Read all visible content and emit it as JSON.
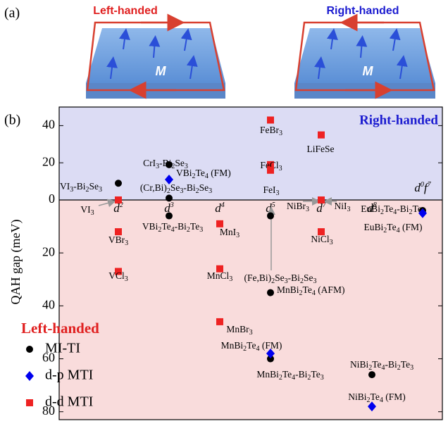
{
  "panel_a": {
    "label": "(a)",
    "left_title": "Left-handed",
    "right_title": "Right-handed",
    "slab_label": "M"
  },
  "chart_data": {
    "type": "scatter",
    "panel_label": "(b)",
    "ylabel": "QAH gap (meV)",
    "upper_label": "Right-handed",
    "lower_label": "Left-handed",
    "categories": [
      "d2",
      "d3",
      "d4",
      "d5",
      "d7",
      "d8",
      "d0f7"
    ],
    "ylim": [
      -83,
      50
    ],
    "yticks": [
      40,
      20,
      0,
      {
        "value": -20,
        "label": "20"
      },
      {
        "value": -40,
        "label": "40"
      },
      {
        "value": -60,
        "label": "60"
      },
      {
        "value": -80,
        "label": "80"
      }
    ],
    "upper_color": "#dcdcf4",
    "lower_color": "#f9dcdc",
    "series": [
      {
        "name": "MI-TI",
        "color": "#000000",
        "marker": "circle",
        "x": [
          "d2",
          "d3",
          "d3",
          "d3",
          "d5",
          "d5",
          "d5",
          "d8",
          "d0f7"
        ],
        "values": [
          9,
          19,
          1,
          -6,
          -6,
          -35,
          -60,
          -66,
          -4
        ],
        "labels": [
          "VI3-Bi2Se3",
          "CrI3-Bi2Se3",
          "(Cr,Bi)2Se3-Bi2Se3",
          "VBi2Te4-Bi2Te3",
          "(Fe,Bi)2Se3-Bi2Se3",
          "MnBi2Te4 (AFM)",
          "MnBi2Te4-Bi2Te3",
          "NiBi2Te4-Bi2Te3",
          "EuBi2Te4-Bi2Te3"
        ]
      },
      {
        "name": "d-p MTI",
        "color": "#0000ee",
        "marker": "diamond",
        "x": [
          "d3",
          "d5",
          "d8",
          "d0f7"
        ],
        "values": [
          11,
          -58,
          -78,
          -5
        ],
        "labels": [
          "VBi2Te4 (FM)",
          "MnBi2Te4 (FM)",
          "NiBi2Te4 (FM)",
          "EuBi2Te4 (FM)"
        ]
      },
      {
        "name": "d-d MTI",
        "color": "#ee2222",
        "marker": "square",
        "x": [
          "d2",
          "d2",
          "d2",
          "d4",
          "d4",
          "d4",
          "d5",
          "d7",
          "d5",
          "d5",
          "d7",
          "d7",
          "d7"
        ],
        "values": [
          0,
          -12,
          -27,
          -9,
          -26,
          -46,
          43,
          35,
          19,
          16,
          0,
          0,
          -12
        ],
        "labels": [
          "VI3",
          "VBr3",
          "VCl3",
          "MnI3",
          "MnCl3",
          "MnBr3",
          "FeBr3",
          "LiFeSe",
          "FeCl3",
          "FeI3",
          "NiBr3",
          "NiI3",
          "NiCl3"
        ]
      }
    ]
  }
}
